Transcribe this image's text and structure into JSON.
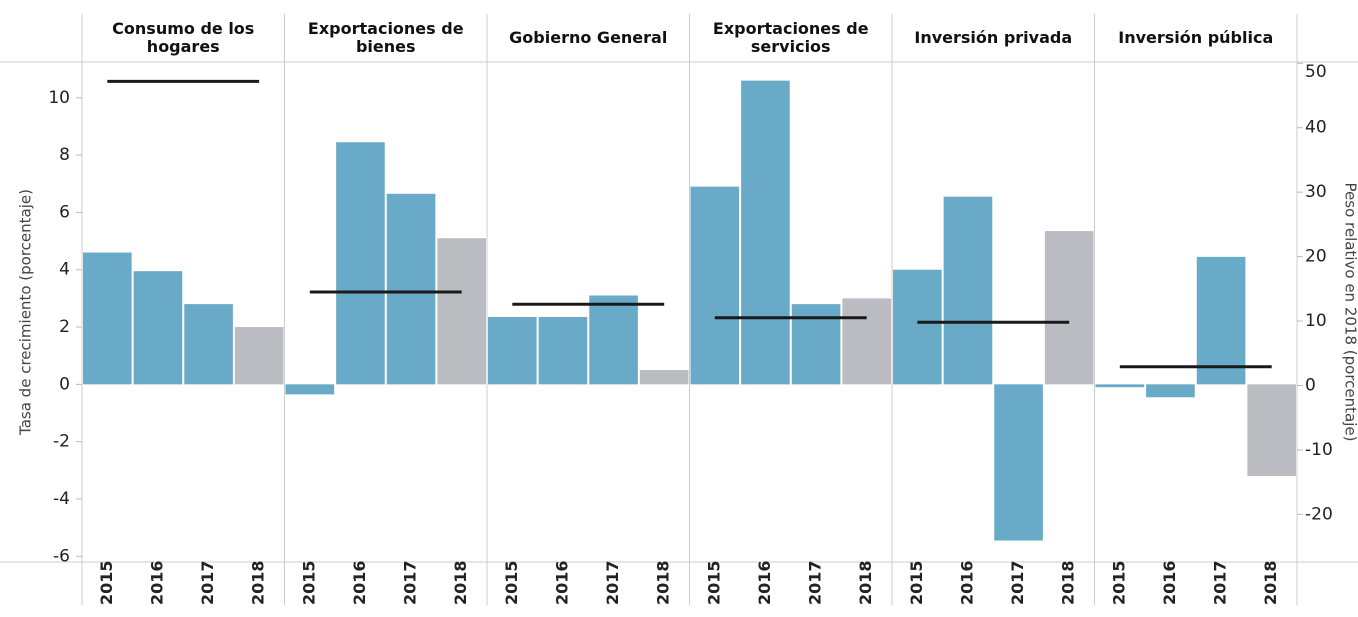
{
  "chart_data": {
    "type": "bar",
    "y_label": "Tasa de crecimiento (porcentaje)",
    "y2_label": "Peso relativo en 2018 (porcentaje)",
    "years": [
      "2015",
      "2016",
      "2017",
      "2018"
    ],
    "color": "#69aac8",
    "last_color": "#bbbcc1",
    "line_color": "#1a1a1a",
    "panels": [
      {
        "title": "Consumo de los hogares",
        "values": [
          4.6,
          3.95,
          2.8,
          2.0
        ],
        "weight": 47.2
      },
      {
        "title": "Exportaciones de bienes",
        "values": [
          -0.35,
          8.45,
          6.65,
          5.1
        ],
        "weight": 14.5
      },
      {
        "title": "Gobierno General",
        "values": [
          2.35,
          2.35,
          3.1,
          0.5
        ],
        "weight": 12.6
      },
      {
        "title": "Exportaciones de servicios",
        "values": [
          6.9,
          10.6,
          2.8,
          3.0
        ],
        "weight": 10.5
      },
      {
        "title": "Inversión privada",
        "values": [
          4.0,
          6.55,
          -5.45,
          5.35
        ],
        "weight": 9.8
      },
      {
        "title": "Inversión pública",
        "values": [
          -0.1,
          -0.45,
          4.45,
          -3.2
        ],
        "weight": 2.9
      }
    ],
    "ylim": [
      -6.2,
      11.25
    ],
    "yticks": [
      -6,
      -4,
      -2,
      0,
      2,
      4,
      6,
      8,
      10
    ],
    "y2lim": [
      -27.4,
      50.2
    ],
    "y2ticks": [
      -20,
      -10,
      0,
      10,
      20,
      30,
      40,
      50
    ]
  }
}
